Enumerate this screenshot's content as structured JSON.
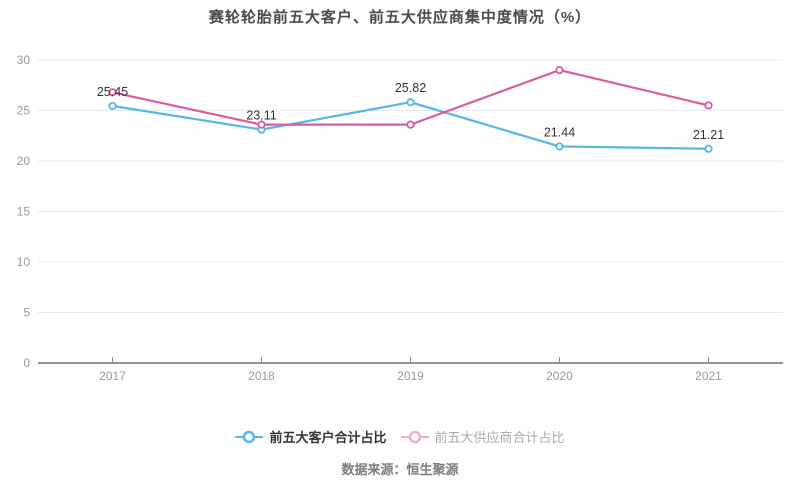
{
  "title": "赛轮轮胎前五大客户、前五大供应商集中度情况（%）",
  "source_note": "数据来源：恒生聚源",
  "colors": {
    "customer_line": "#55b6e8",
    "supplier_line": "#dc5aa0",
    "supplier_legend_faded": "#f0accf",
    "grid_line": "#e5eaf2",
    "axis_line": "#555555",
    "axis_label": "#999999",
    "data_label": "#333333"
  },
  "legend": [
    {
      "label": "前五大客户合计占比",
      "marker_color": "#55b6e8",
      "state": "active",
      "text_color": "#333333"
    },
    {
      "label": "前五大供应商合计占比",
      "marker_color": "#f0accf",
      "state": "inactive",
      "text_color": "#aaaaaa"
    }
  ],
  "chart_data": {
    "type": "line",
    "title": "赛轮轮胎前五大客户、前五大供应商集中度情况（%）",
    "categories": [
      "2017",
      "2018",
      "2019",
      "2020",
      "2021"
    ],
    "series": [
      {
        "name": "前五大客户合计占比",
        "color": "#55b6e8",
        "values": [
          25.45,
          23.11,
          25.82,
          21.44,
          21.21
        ],
        "data_labels": [
          "25.45",
          "23.11",
          "25.82",
          "21.44",
          "21.21"
        ],
        "labels_visible": true
      },
      {
        "name": "前五大供应商合计占比",
        "color": "#dc5aa0",
        "values": [
          26.8,
          23.6,
          23.6,
          29.0,
          25.5
        ],
        "data_labels": [],
        "labels_visible": false
      }
    ],
    "ylim": [
      0,
      30
    ],
    "yticks": [
      0,
      5,
      10,
      15,
      20,
      25,
      30
    ],
    "grid": true,
    "legend_position": "bottom"
  }
}
